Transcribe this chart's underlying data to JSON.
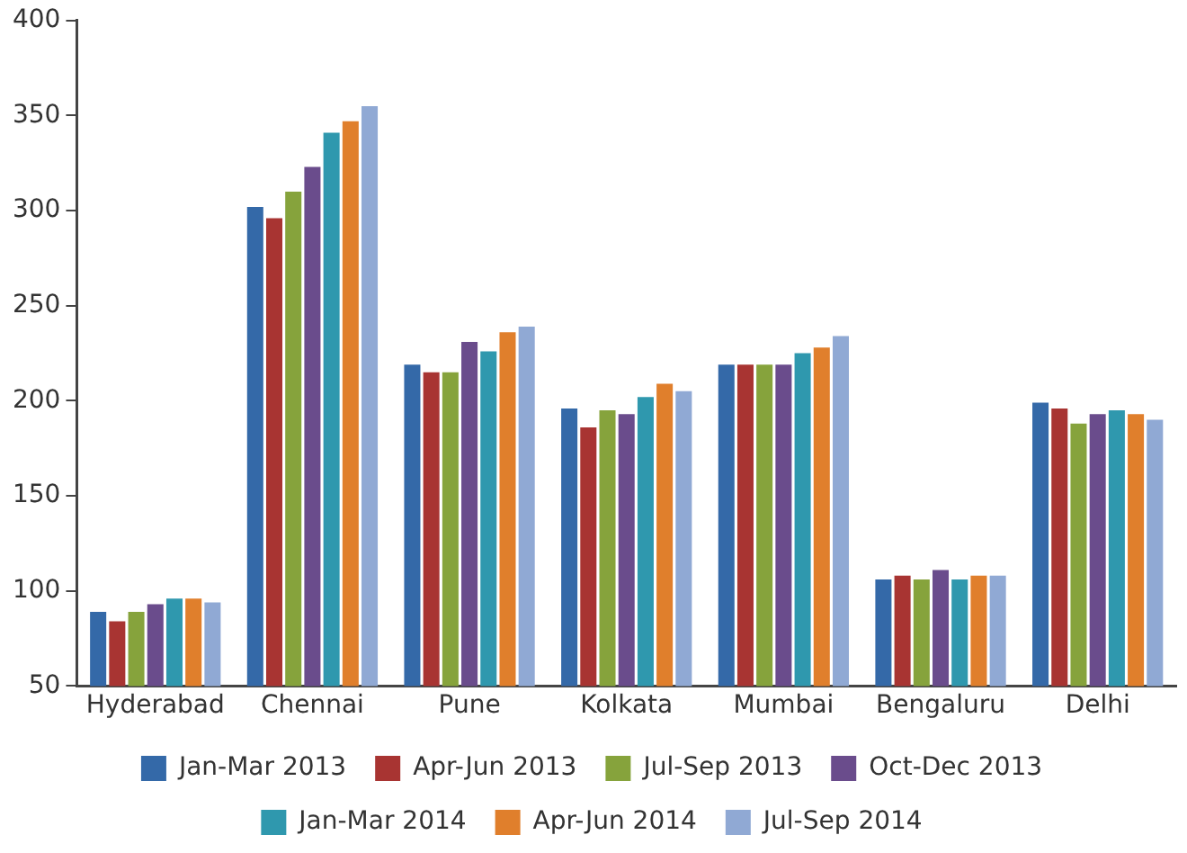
{
  "chart_data": {
    "type": "bar",
    "categories": [
      "Hyderabad",
      "Chennai",
      "Pune",
      "Kolkata",
      "Mumbai",
      "Bengaluru",
      "Delhi"
    ],
    "series": [
      {
        "name": "Jan-Mar 2013",
        "color": "#3469a8",
        "values": [
          89,
          302,
          219,
          196,
          219,
          106,
          199
        ]
      },
      {
        "name": "Apr-Jun 2013",
        "color": "#a83432",
        "values": [
          84,
          296,
          215,
          186,
          219,
          108,
          196
        ]
      },
      {
        "name": "Jul-Sep 2013",
        "color": "#86a33c",
        "values": [
          89,
          310,
          215,
          195,
          219,
          106,
          188
        ]
      },
      {
        "name": "Oct-Dec 2013",
        "color": "#6a4c8c",
        "values": [
          93,
          323,
          231,
          193,
          219,
          111,
          193
        ]
      },
      {
        "name": "Jan-Mar 2014",
        "color": "#2f98ae",
        "values": [
          96,
          341,
          226,
          202,
          225,
          106,
          195
        ]
      },
      {
        "name": "Apr-Jun 2014",
        "color": "#e07f2c",
        "values": [
          96,
          347,
          236,
          209,
          228,
          108,
          193
        ]
      },
      {
        "name": "Jul-Sep 2014",
        "color": "#90a9d4",
        "values": [
          94,
          355,
          239,
          205,
          234,
          108,
          190
        ]
      }
    ],
    "ylim": [
      50,
      400
    ],
    "yticks": [
      50,
      100,
      150,
      200,
      250,
      300,
      350,
      400
    ],
    "grid": false,
    "legend": "bottom"
  }
}
